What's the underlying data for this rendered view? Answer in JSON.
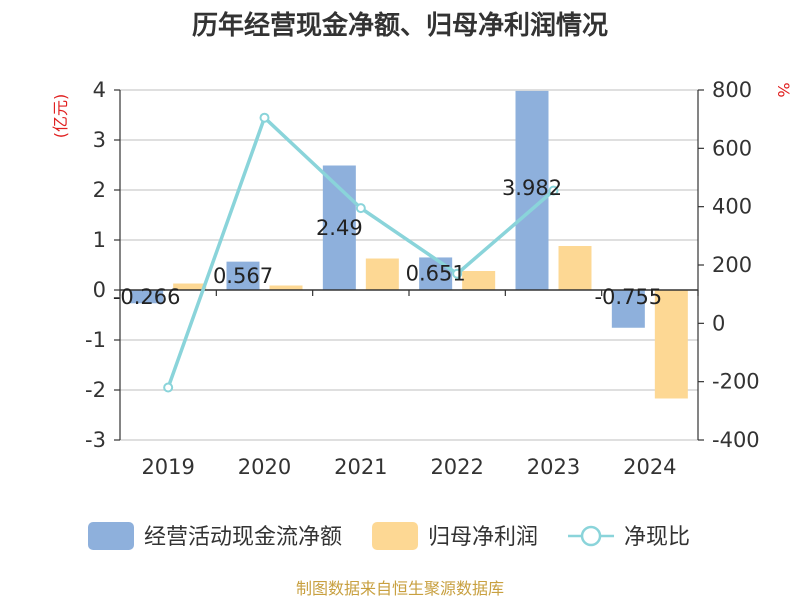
{
  "chart_data": {
    "type": "bar",
    "title": "历年经营现金净额、归母净利润情况",
    "categories": [
      "2019",
      "2020",
      "2021",
      "2022",
      "2023",
      "2024"
    ],
    "left_unit": "(亿元)",
    "right_unit": "%",
    "left_axis": {
      "ylim": [
        -3,
        4
      ],
      "ticks": [
        4,
        3,
        2,
        1,
        0,
        -1,
        -2,
        -3
      ]
    },
    "right_axis": {
      "ylim": [
        -400,
        800
      ],
      "ticks": [
        800,
        600,
        400,
        200,
        0,
        -200,
        -400
      ]
    },
    "grid": true,
    "legend_position": "bottom",
    "series": [
      {
        "name": "经营活动现金流净额",
        "kind": "bar",
        "axis": "left",
        "color": "#8eb0dc",
        "values": [
          -0.266,
          0.567,
          2.49,
          0.651,
          3.982,
          -0.755
        ],
        "value_labels": [
          "-0.266",
          "0.567",
          "2.49",
          "0.651",
          "3.982",
          "-0.755"
        ]
      },
      {
        "name": "归母净利润",
        "kind": "bar",
        "axis": "left",
        "color": "#fdd894",
        "values": [
          0.13,
          0.09,
          0.63,
          0.38,
          0.88,
          -2.17
        ]
      },
      {
        "name": "净现比",
        "kind": "line",
        "axis": "right",
        "color": "#8ad4da",
        "values": [
          -220,
          705,
          395,
          170,
          455,
          null
        ]
      }
    ],
    "source_note": "制图数据来自恒生聚源数据库",
    "source_color": "#c8a040",
    "unit_color": "#e02020"
  }
}
